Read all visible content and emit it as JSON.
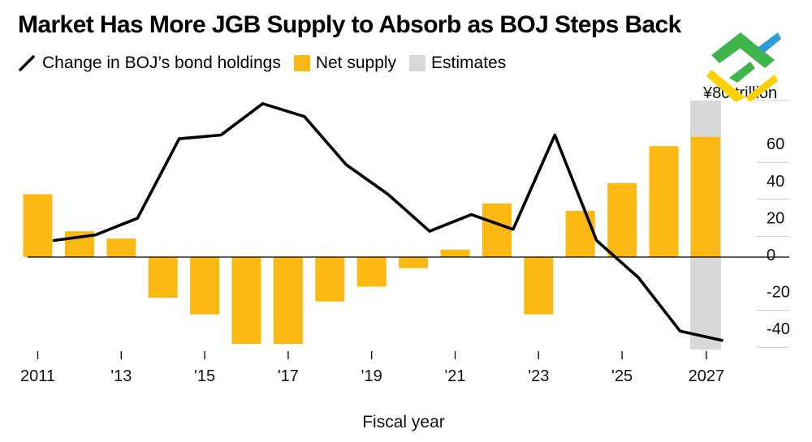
{
  "chart_data": {
    "type": "bar",
    "title": "Market Has More JGB Supply to Absorb as BOJ Steps Back",
    "xlabel": "Fiscal year",
    "ylabel": "",
    "unit_label": "¥80 trillion",
    "ylim": [
      -50,
      82
    ],
    "y_ticks": [
      60,
      40,
      20,
      0,
      -20,
      -40
    ],
    "y_tick_labels": [
      "60",
      "40",
      "20",
      "0",
      "-20",
      "-40"
    ],
    "grid": true,
    "legend_position": "top-left",
    "legend": [
      {
        "label": "Change in BOJ’s bond holdings",
        "kind": "line",
        "color": "#000000"
      },
      {
        "label": "Net supply",
        "kind": "bar",
        "color": "#FDB913"
      },
      {
        "label": "Estimates",
        "kind": "shade",
        "color": "#D9D9D9"
      }
    ],
    "categories": [
      2011,
      2012,
      2013,
      2014,
      2015,
      2016,
      2017,
      2018,
      2019,
      2020,
      2021,
      2022,
      2023,
      2024,
      2025,
      2026,
      2027
    ],
    "x_ticks": [
      2011,
      2013,
      2015,
      2017,
      2019,
      2021,
      2023,
      2025,
      2027
    ],
    "x_tick_labels": [
      "2011",
      "'13",
      "'15",
      "'17",
      "'19",
      "'21",
      "'23",
      "'25",
      "2027"
    ],
    "estimate_start": 2026.5,
    "series": [
      {
        "name": "Net supply",
        "type": "bar",
        "color": "#FDB913",
        "values": [
          34,
          14,
          10,
          -22,
          -31,
          -47,
          -47,
          -24,
          -16,
          -6,
          4,
          29,
          -31,
          25,
          40,
          60,
          65
        ]
      },
      {
        "name": "Change in BOJ’s bond holdings",
        "type": "line",
        "color": "#000000",
        "x": [
          2011.4,
          2012.4,
          2013.4,
          2014.4,
          2015.4,
          2016.4,
          2017.4,
          2018.4,
          2019.4,
          2020.4,
          2021.4,
          2022.4,
          2023.4,
          2024.4,
          2025.4,
          2026.4,
          2027.4
        ],
        "values": [
          9,
          12,
          21,
          64,
          66,
          83,
          76,
          50,
          34,
          14,
          23,
          15,
          66,
          9,
          -11,
          -40,
          -45
        ]
      }
    ]
  }
}
